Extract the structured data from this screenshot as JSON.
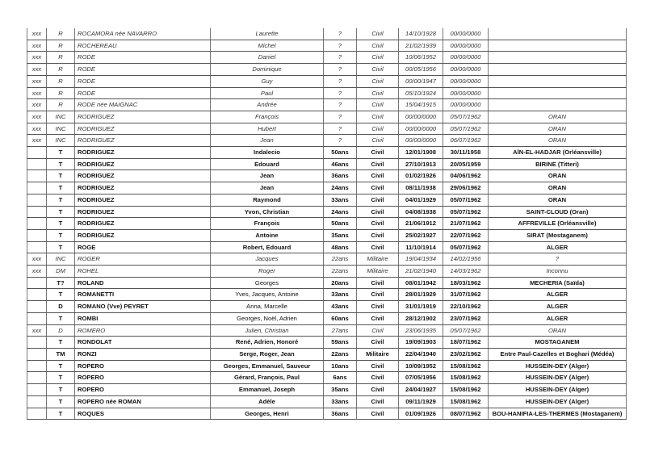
{
  "table": {
    "rows": [
      {
        "style": "i",
        "c": [
          "xxx",
          "R",
          "ROCAMORA née NAVARRO",
          "Laurette",
          "?",
          "Civil",
          "14/10/1928",
          "00/00/0000",
          ""
        ]
      },
      {
        "style": "i",
        "c": [
          "xxx",
          "R",
          "ROCHEREAU",
          "Michel",
          "?",
          "Civil",
          "21/02/1939",
          "00/00/0000",
          ""
        ]
      },
      {
        "style": "i",
        "c": [
          "xxx",
          "R",
          "RODE",
          "Daniel",
          "?",
          "Civil",
          "10/06/1952",
          "00/00/0000",
          ""
        ]
      },
      {
        "style": "i",
        "c": [
          "xxx",
          "R",
          "RODE",
          "Dominique",
          "?",
          "Civil",
          "00/05/1956",
          "00/00/0000",
          ""
        ]
      },
      {
        "style": "i",
        "c": [
          "xxx",
          "R",
          "RODE",
          "Guy",
          "?",
          "Civil",
          "00/00/1947",
          "00/00/0000",
          ""
        ]
      },
      {
        "style": "i",
        "c": [
          "xxx",
          "R",
          "RODE",
          "Paul",
          "?",
          "Civil",
          "05/10/1924",
          "00/00/0000",
          ""
        ]
      },
      {
        "style": "i",
        "c": [
          "xxx",
          "R",
          "RODE née MAIGNAC",
          "Andrée",
          "?",
          "Civil",
          "15/04/1915",
          "00/00/0000",
          ""
        ]
      },
      {
        "style": "i",
        "c": [
          "xxx",
          "INC",
          "RODRIGUEZ",
          "François",
          "?",
          "Civil",
          "00/00/0000",
          "05/07/1962",
          "ORAN"
        ]
      },
      {
        "style": "i",
        "c": [
          "xxx",
          "INC",
          "RODRIGUEZ",
          "Hubert",
          "?",
          "Civil",
          "00/00/0000",
          "05/07/1962",
          "ORAN"
        ]
      },
      {
        "style": "i",
        "c": [
          "xxx",
          "INC",
          "RODRIGUEZ",
          "Jean",
          "?",
          "Civil",
          "00/00/0000",
          "06/07/1962",
          "ORAN"
        ]
      },
      {
        "style": "b",
        "c": [
          "",
          "T",
          "RODRIGUEZ",
          "Indalecio",
          "50ans",
          "Civil",
          "12/01/1908",
          "30/11/1958",
          "AÏN-EL-HADJAR  (Orléansville)"
        ]
      },
      {
        "style": "b",
        "c": [
          "",
          "T",
          "RODRIGUEZ",
          "Edouard",
          "46ans",
          "Civil",
          "27/10/1913",
          "20/05/1959",
          "BIRINE (Titteri)"
        ]
      },
      {
        "style": "b",
        "c": [
          "",
          "T",
          "RODRIGUEZ",
          "Jean",
          "36ans",
          "Civil",
          "01/02/1926",
          "04/06/1962",
          "ORAN"
        ]
      },
      {
        "style": "b",
        "c": [
          "",
          "T",
          "RODRIGUEZ",
          "Jean",
          "24ans",
          "Civil",
          "08/11/1938",
          "29/06/1962",
          "ORAN"
        ]
      },
      {
        "style": "b",
        "c": [
          "",
          "T",
          "RODRIGUEZ",
          "Raymond",
          "33ans",
          "Civil",
          "04/01/1929",
          "05/07/1962",
          "ORAN"
        ]
      },
      {
        "style": "b",
        "c": [
          "",
          "T",
          "RODRIGUEZ",
          "Yvon, Christian",
          "24ans",
          "Civil",
          "04/08/1938",
          "05/07/1962",
          "SAINT-CLOUD (Oran)"
        ]
      },
      {
        "style": "b",
        "c": [
          "",
          "T",
          "RODRIGUEZ",
          "François",
          "50ans",
          "Civil",
          "21/06/1912",
          "21/07/1962",
          "AFFREVILLE (Orléansville)"
        ]
      },
      {
        "style": "b",
        "c": [
          "",
          "T",
          "RODRIGUEZ",
          "Antoine",
          "35ans",
          "Civil",
          "25/02/1927",
          "22/07/1962",
          "SIRAT (Mostaganem)"
        ]
      },
      {
        "style": "b",
        "c": [
          "",
          "T",
          "ROGE",
          "Robert, Edouard",
          "48ans",
          "Civil",
          "11/10/1914",
          "05/07/1962",
          "ALGER"
        ]
      },
      {
        "style": "i",
        "c": [
          "xxx",
          "INC",
          "ROGER",
          "Jacques",
          "22ans",
          "Militaire",
          "19/04/1934",
          "14/02/1956",
          "?"
        ]
      },
      {
        "style": "i",
        "c": [
          "xxx",
          "DM",
          "ROHEL",
          "Roger",
          "22ans",
          "Militaire",
          "21/02/1940",
          "14/03/1962",
          "Inconnu"
        ]
      },
      {
        "style": "b",
        "n": true,
        "c": [
          "",
          "T?",
          "ROLAND",
          "Georges",
          "20ans",
          "Civil",
          "08/01/1942",
          "18/03/1962",
          "MECHERIA (Saïda)"
        ]
      },
      {
        "style": "b",
        "n": true,
        "c": [
          "",
          "T",
          "ROMANETTI",
          "Yves, Jacques, Antoine",
          "33ans",
          "Civil",
          "28/01/1929",
          "31/07/1962",
          "ALGER"
        ]
      },
      {
        "style": "b",
        "n": true,
        "c": [
          "",
          "D",
          "ROMANO (Vve) PEYRET",
          "Anna, Marcelle",
          "43ans",
          "Civil",
          "31/01/1919",
          "22/10/1962",
          "ALGER"
        ]
      },
      {
        "style": "b",
        "n": true,
        "c": [
          "",
          "T",
          "ROMBI",
          "Georges, Noël, Adrien",
          "60ans",
          "Civil",
          "28/12/1902",
          "23/07/1962",
          "ALGER"
        ]
      },
      {
        "style": "i",
        "c": [
          "xxx",
          "D",
          "ROMERO",
          "Julien, Christian",
          "27ans",
          "Civil",
          "23/06/1935",
          "05/07/1962",
          "ORAN"
        ]
      },
      {
        "style": "b",
        "c": [
          "",
          "T",
          "RONDOLAT",
          "René, Adrien, Honoré",
          "59ans",
          "Civil",
          "19/09/1903",
          "18/07/1962",
          "MOSTAGANEM"
        ]
      },
      {
        "style": "b",
        "c": [
          "",
          "TM",
          "RONZI",
          "Serge, Roger, Jean",
          "22ans",
          "Militaire",
          "22/04/1940",
          "23/02/1962",
          "Entre Paul-Cazelles et Boghari (Médéa)"
        ]
      },
      {
        "style": "b",
        "c": [
          "",
          "T",
          "ROPERO",
          "Georges, Emmanuel, Sauveur",
          "10ans",
          "Civil",
          "10/09/1952",
          "15/08/1962",
          "HUSSEIN-DEY (Alger)"
        ]
      },
      {
        "style": "b",
        "c": [
          "",
          "T",
          "ROPERO",
          "Gérard, François, Paul",
          "6ans",
          "Civil",
          "07/05/1956",
          "15/08/1962",
          "HUSSEIN-DEY (Alger)"
        ]
      },
      {
        "style": "b",
        "c": [
          "",
          "T",
          "ROPERO",
          "Emmanuel, Joseph",
          "35ans",
          "Civil",
          "24/04/1927",
          "15/08/1962",
          "HUSSEIN-DEY (Alger)"
        ]
      },
      {
        "style": "b",
        "c": [
          "",
          "T",
          "ROPERO née ROMAN",
          "Adèle",
          "33ans",
          "Civil",
          "09/11/1929",
          "15/08/1962",
          "HUSSEIN-DEY (Alger)"
        ]
      },
      {
        "style": "b",
        "c": [
          "",
          "T",
          "ROQUES",
          "Georges, Henri",
          "36ans",
          "Civil",
          "01/09/1926",
          "08/07/1962",
          "BOU-HANIFIA-LES-THERMES (Mostaganem)"
        ]
      }
    ]
  }
}
